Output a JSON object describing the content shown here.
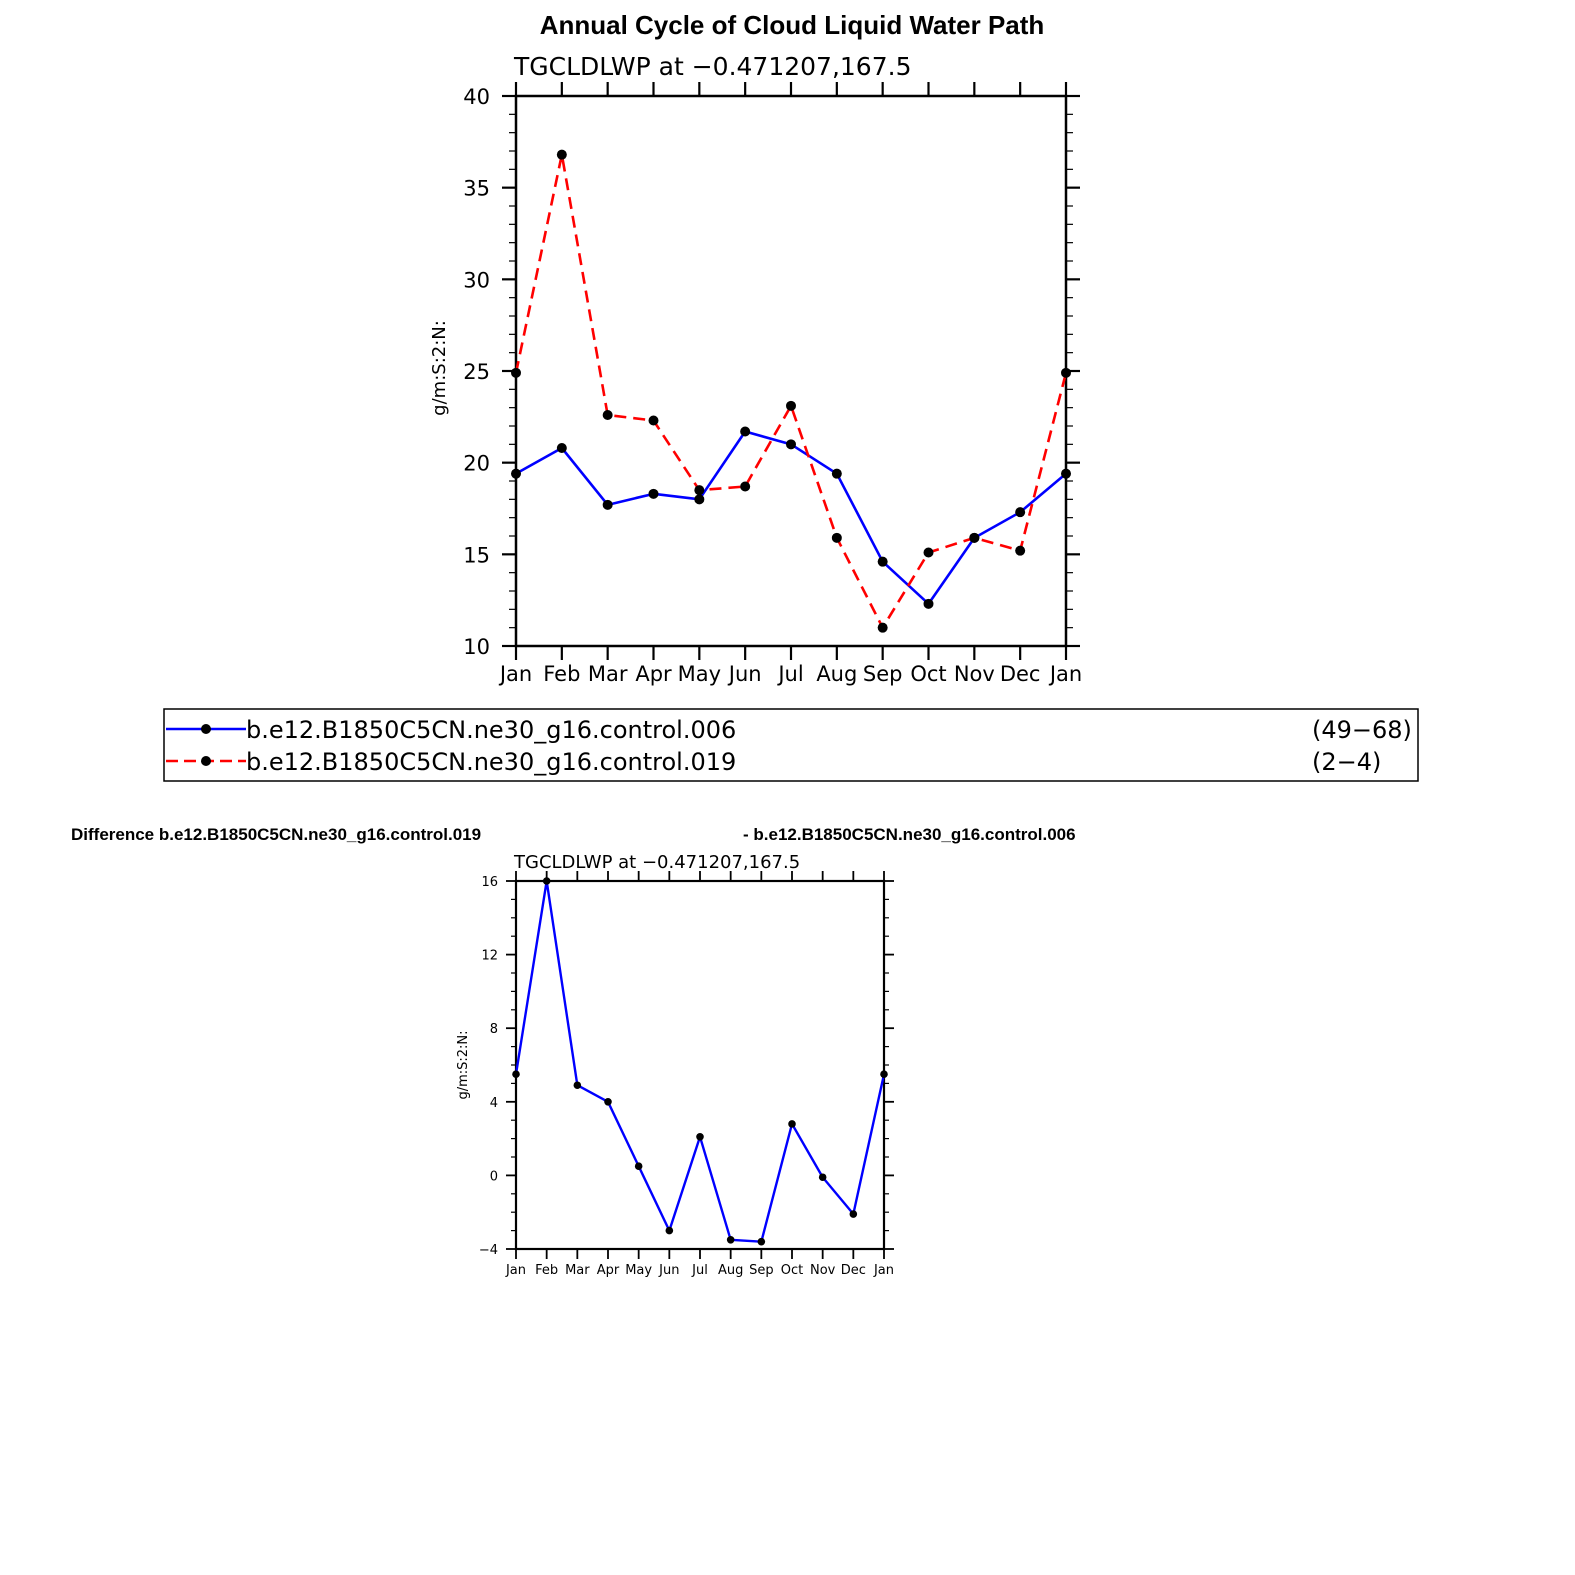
{
  "chart_data": [
    {
      "type": "line",
      "title": "Annual Cycle of Cloud Liquid Water Path",
      "subtitle": "TGCLDLWP  at  −0.471207,167.5",
      "xlabel": "",
      "ylabel": "g/m:S:2:N:",
      "ylim": [
        10,
        40
      ],
      "yticks": [
        "10",
        "15",
        "20",
        "25",
        "30",
        "35",
        "40"
      ],
      "categories": [
        "Jan",
        "Feb",
        "Mar",
        "Apr",
        "May",
        "Jun",
        "Jul",
        "Aug",
        "Sep",
        "Oct",
        "Nov",
        "Dec",
        "Jan"
      ],
      "grid": false,
      "series": [
        {
          "name": "b.e12.B1850C5CN.ne30_g16.control.006",
          "years": "(49−68)",
          "color": "#0000ff",
          "dash": "solid",
          "values": [
            19.4,
            20.8,
            17.7,
            18.3,
            18.0,
            21.7,
            21.0,
            19.4,
            14.6,
            12.3,
            15.9,
            17.3,
            19.4
          ]
        },
        {
          "name": "b.e12.B1850C5CN.ne30_g16.control.019",
          "years": "(2−4)",
          "color": "#ff0000",
          "dash": "dashed",
          "values": [
            24.9,
            36.8,
            22.6,
            22.3,
            18.5,
            18.7,
            23.1,
            15.9,
            11.0,
            15.1,
            15.9,
            15.2,
            24.9
          ]
        }
      ],
      "legend": "bottom"
    },
    {
      "type": "line",
      "title_left": "Difference b.e12.B1850C5CN.ne30_g16.control.019",
      "title_right": "- b.e12.B1850C5CN.ne30_g16.control.006",
      "subtitle": "TGCLDLWP  at  −0.471207,167.5",
      "xlabel": "",
      "ylabel": "g/m:S:2:N:",
      "ylim": [
        -4,
        16
      ],
      "yticks": [
        "−4",
        "0",
        "4",
        "8",
        "12",
        "16"
      ],
      "categories": [
        "Jan",
        "Feb",
        "Mar",
        "Apr",
        "May",
        "Jun",
        "Jul",
        "Aug",
        "Sep",
        "Oct",
        "Nov",
        "Dec",
        "Jan"
      ],
      "grid": false,
      "series": [
        {
          "color": "#0000ff",
          "values": [
            5.5,
            16.0,
            4.9,
            4.0,
            0.5,
            -3.0,
            2.1,
            -3.5,
            -3.6,
            2.8,
            -0.1,
            -2.1,
            5.5
          ]
        }
      ]
    }
  ]
}
